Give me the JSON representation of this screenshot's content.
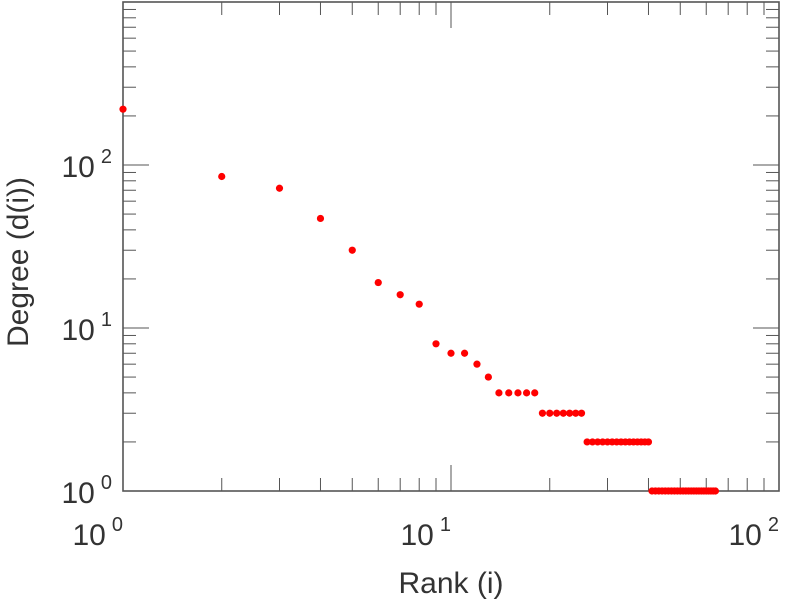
{
  "chart_data": {
    "type": "scatter",
    "xscale": "log",
    "yscale": "log",
    "xlabel": "Rank (i)",
    "ylabel": "Degree (d(i))",
    "xlim": [
      1,
      100
    ],
    "ylim": [
      1,
      1000
    ],
    "marker_color": "#ff0000",
    "x_ticks": [
      {
        "base": "10",
        "exp": "0"
      },
      {
        "base": "10",
        "exp": "1"
      },
      {
        "base": "10",
        "exp": "2"
      }
    ],
    "y_ticks": [
      {
        "base": "10",
        "exp": "0"
      },
      {
        "base": "10",
        "exp": "1"
      },
      {
        "base": "10",
        "exp": "2"
      }
    ],
    "series": [
      {
        "name": "degree",
        "points": [
          {
            "x": 1,
            "y": 220
          },
          {
            "x": 2,
            "y": 85
          },
          {
            "x": 3,
            "y": 72
          },
          {
            "x": 4,
            "y": 47
          },
          {
            "x": 5,
            "y": 30
          },
          {
            "x": 6,
            "y": 19
          },
          {
            "x": 7,
            "y": 16
          },
          {
            "x": 8,
            "y": 14
          },
          {
            "x": 9,
            "y": 8
          },
          {
            "x": 10,
            "y": 7
          },
          {
            "x": 11,
            "y": 7
          },
          {
            "x": 12,
            "y": 6
          },
          {
            "x": 13,
            "y": 5
          },
          {
            "x": 14,
            "y": 4
          },
          {
            "x": 15,
            "y": 4
          },
          {
            "x": 16,
            "y": 4
          },
          {
            "x": 17,
            "y": 4
          },
          {
            "x": 18,
            "y": 4
          },
          {
            "x": 19,
            "y": 3
          },
          {
            "x": 20,
            "y": 3
          },
          {
            "x": 21,
            "y": 3
          },
          {
            "x": 22,
            "y": 3
          },
          {
            "x": 23,
            "y": 3
          },
          {
            "x": 24,
            "y": 3
          },
          {
            "x": 25,
            "y": 3
          },
          {
            "x": 26,
            "y": 2
          },
          {
            "x": 27,
            "y": 2
          },
          {
            "x": 28,
            "y": 2
          },
          {
            "x": 29,
            "y": 2
          },
          {
            "x": 30,
            "y": 2
          },
          {
            "x": 31,
            "y": 2
          },
          {
            "x": 32,
            "y": 2
          },
          {
            "x": 33,
            "y": 2
          },
          {
            "x": 34,
            "y": 2
          },
          {
            "x": 35,
            "y": 2
          },
          {
            "x": 36,
            "y": 2
          },
          {
            "x": 37,
            "y": 2
          },
          {
            "x": 38,
            "y": 2
          },
          {
            "x": 39,
            "y": 2
          },
          {
            "x": 40,
            "y": 2
          },
          {
            "x": 41,
            "y": 1
          },
          {
            "x": 42,
            "y": 1
          },
          {
            "x": 43,
            "y": 1
          },
          {
            "x": 44,
            "y": 1
          },
          {
            "x": 45,
            "y": 1
          },
          {
            "x": 46,
            "y": 1
          },
          {
            "x": 47,
            "y": 1
          },
          {
            "x": 48,
            "y": 1
          },
          {
            "x": 49,
            "y": 1
          },
          {
            "x": 50,
            "y": 1
          },
          {
            "x": 51,
            "y": 1
          },
          {
            "x": 52,
            "y": 1
          },
          {
            "x": 53,
            "y": 1
          },
          {
            "x": 54,
            "y": 1
          },
          {
            "x": 55,
            "y": 1
          },
          {
            "x": 56,
            "y": 1
          },
          {
            "x": 57,
            "y": 1
          },
          {
            "x": 58,
            "y": 1
          },
          {
            "x": 59,
            "y": 1
          },
          {
            "x": 60,
            "y": 1
          },
          {
            "x": 61,
            "y": 1
          },
          {
            "x": 62,
            "y": 1
          },
          {
            "x": 63,
            "y": 1
          },
          {
            "x": 64,
            "y": 1
          }
        ]
      }
    ]
  }
}
